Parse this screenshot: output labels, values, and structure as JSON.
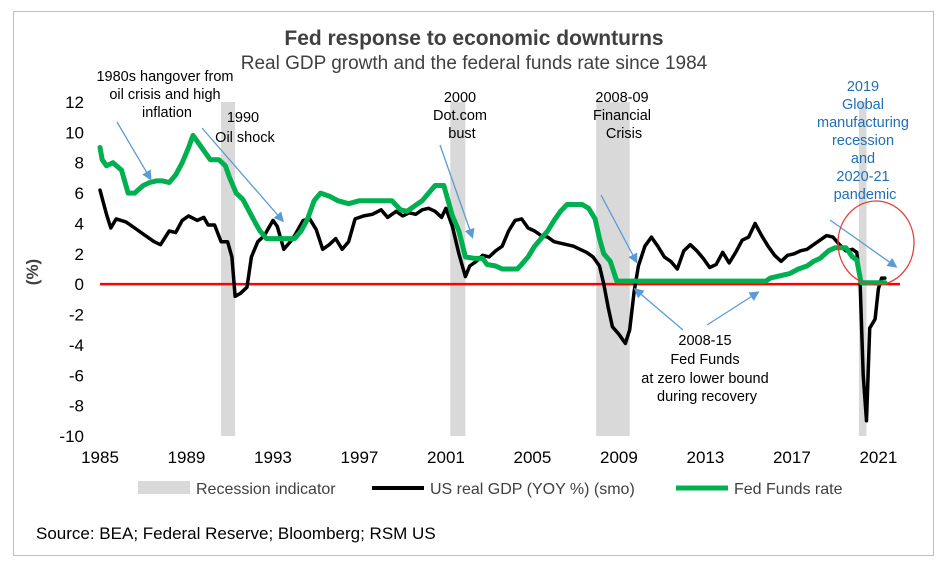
{
  "chart_data": {
    "type": "line",
    "title": "Fed response to economic downturns",
    "subtitle": "Real GDP growth and the federal funds rate since 1984",
    "ylabel": "(%)",
    "xlabel": "",
    "xlim": [
      1985,
      2022
    ],
    "ylim": [
      -10,
      12
    ],
    "x_ticks": [
      1985,
      1989,
      1993,
      1997,
      2001,
      2005,
      2009,
      2013,
      2017,
      2021
    ],
    "y_ticks": [
      -10,
      -8,
      -6,
      -4,
      -2,
      0,
      2,
      4,
      6,
      8,
      10,
      12
    ],
    "zero_line_color": "#ff0000",
    "recessions": {
      "name": "Recession indicator",
      "color": "#d9d9d9",
      "periods": [
        [
          1990.6,
          1991.25
        ],
        [
          2001.2,
          2001.9
        ],
        [
          2007.95,
          2009.5
        ],
        [
          2020.1,
          2020.45
        ]
      ]
    },
    "series": [
      {
        "name": "US real GDP (YOY %) (smo)",
        "color": "#000000",
        "points": [
          [
            1985,
            6.2
          ],
          [
            1985.3,
            4.6
          ],
          [
            1985.5,
            3.7
          ],
          [
            1985.75,
            4.3
          ],
          [
            1986.2,
            4.1
          ],
          [
            1986.7,
            3.6
          ],
          [
            1987,
            3.3
          ],
          [
            1987.5,
            2.8
          ],
          [
            1987.8,
            2.6
          ],
          [
            1988.2,
            3.5
          ],
          [
            1988.5,
            3.4
          ],
          [
            1988.8,
            4.2
          ],
          [
            1989.1,
            4.5
          ],
          [
            1989.5,
            4.2
          ],
          [
            1989.8,
            4.4
          ],
          [
            1990,
            3.9
          ],
          [
            1990.3,
            3.9
          ],
          [
            1990.6,
            2.8
          ],
          [
            1990.9,
            2.8
          ],
          [
            1991.1,
            1.8
          ],
          [
            1991.25,
            -0.8
          ],
          [
            1991.5,
            -0.6
          ],
          [
            1991.8,
            -0.2
          ],
          [
            1992,
            1.8
          ],
          [
            1992.3,
            2.8
          ],
          [
            1992.6,
            3.2
          ],
          [
            1993,
            4.2
          ],
          [
            1993.2,
            3.8
          ],
          [
            1993.5,
            2.3
          ],
          [
            1993.8,
            2.8
          ],
          [
            1994,
            3.2
          ],
          [
            1994.4,
            4.2
          ],
          [
            1994.7,
            4.3
          ],
          [
            1995,
            3.6
          ],
          [
            1995.3,
            2.3
          ],
          [
            1995.6,
            2.6
          ],
          [
            1995.9,
            3.0
          ],
          [
            1996.2,
            2.3
          ],
          [
            1996.5,
            2.8
          ],
          [
            1996.8,
            4.3
          ],
          [
            1997.2,
            4.5
          ],
          [
            1997.6,
            4.6
          ],
          [
            1998,
            4.9
          ],
          [
            1998.3,
            4.4
          ],
          [
            1998.7,
            4.8
          ],
          [
            1999,
            4.5
          ],
          [
            1999.3,
            4.7
          ],
          [
            1999.6,
            4.6
          ],
          [
            1999.9,
            4.9
          ],
          [
            2000.2,
            5.0
          ],
          [
            2000.5,
            4.8
          ],
          [
            2000.8,
            4.4
          ],
          [
            2001.0,
            5.0
          ],
          [
            2001.3,
            3.8
          ],
          [
            2001.6,
            2.0
          ],
          [
            2001.9,
            0.5
          ],
          [
            2002.1,
            1.2
          ],
          [
            2002.4,
            1.5
          ],
          [
            2002.7,
            1.9
          ],
          [
            2003.0,
            1.8
          ],
          [
            2003.3,
            2.2
          ],
          [
            2003.6,
            2.5
          ],
          [
            2003.9,
            3.5
          ],
          [
            2004.2,
            4.2
          ],
          [
            2004.5,
            4.3
          ],
          [
            2004.8,
            3.7
          ],
          [
            2005.1,
            3.5
          ],
          [
            2005.4,
            3.2
          ],
          [
            2005.7,
            3.1
          ],
          [
            2006,
            2.8
          ],
          [
            2006.3,
            2.7
          ],
          [
            2006.6,
            2.6
          ],
          [
            2006.9,
            2.5
          ],
          [
            2007.2,
            2.3
          ],
          [
            2007.5,
            2.1
          ],
          [
            2007.8,
            1.8
          ],
          [
            2008.1,
            1.2
          ],
          [
            2008.3,
            0.0
          ],
          [
            2008.5,
            -1.5
          ],
          [
            2008.7,
            -2.8
          ],
          [
            2009.0,
            -3.3
          ],
          [
            2009.3,
            -3.9
          ],
          [
            2009.5,
            -3.0
          ],
          [
            2009.7,
            -0.5
          ],
          [
            2009.9,
            1.2
          ],
          [
            2010.2,
            2.5
          ],
          [
            2010.5,
            3.1
          ],
          [
            2010.8,
            2.5
          ],
          [
            2011.1,
            1.8
          ],
          [
            2011.4,
            1.5
          ],
          [
            2011.7,
            1.0
          ],
          [
            2012.0,
            2.2
          ],
          [
            2012.3,
            2.6
          ],
          [
            2012.6,
            2.2
          ],
          [
            2012.9,
            1.7
          ],
          [
            2013.2,
            1.1
          ],
          [
            2013.5,
            1.3
          ],
          [
            2013.8,
            2.1
          ],
          [
            2014.1,
            1.4
          ],
          [
            2014.4,
            2.1
          ],
          [
            2014.7,
            2.9
          ],
          [
            2015.0,
            3.1
          ],
          [
            2015.3,
            4.0
          ],
          [
            2015.6,
            3.2
          ],
          [
            2015.9,
            2.5
          ],
          [
            2016.2,
            1.9
          ],
          [
            2016.5,
            1.5
          ],
          [
            2016.8,
            1.9
          ],
          [
            2017.1,
            2.0
          ],
          [
            2017.4,
            2.2
          ],
          [
            2017.7,
            2.3
          ],
          [
            2018.0,
            2.6
          ],
          [
            2018.3,
            2.9
          ],
          [
            2018.6,
            3.2
          ],
          [
            2018.9,
            3.1
          ],
          [
            2019.2,
            2.6
          ],
          [
            2019.5,
            2.2
          ],
          [
            2019.8,
            2.3
          ],
          [
            2020.0,
            2.1
          ],
          [
            2020.15,
            0.3
          ],
          [
            2020.3,
            -6.0
          ],
          [
            2020.45,
            -9.0
          ],
          [
            2020.6,
            -2.9
          ],
          [
            2020.85,
            -2.3
          ],
          [
            2021.0,
            -0.3
          ],
          [
            2021.15,
            0.4
          ],
          [
            2021.3,
            0.4
          ]
        ]
      },
      {
        "name": "Fed Funds rate",
        "color": "#00b050",
        "points": [
          [
            1985,
            9.0
          ],
          [
            1985.1,
            8.2
          ],
          [
            1985.3,
            7.8
          ],
          [
            1985.6,
            8.0
          ],
          [
            1986.0,
            7.5
          ],
          [
            1986.3,
            6.0
          ],
          [
            1986.6,
            6.0
          ],
          [
            1987.0,
            6.5
          ],
          [
            1987.3,
            6.7
          ],
          [
            1987.6,
            6.8
          ],
          [
            1987.9,
            6.8
          ],
          [
            1988.2,
            6.7
          ],
          [
            1988.5,
            7.2
          ],
          [
            1988.8,
            8.0
          ],
          [
            1989.1,
            9.0
          ],
          [
            1989.3,
            9.8
          ],
          [
            1989.6,
            9.2
          ],
          [
            1989.9,
            8.6
          ],
          [
            1990.1,
            8.2
          ],
          [
            1990.5,
            8.2
          ],
          [
            1990.8,
            7.8
          ],
          [
            1991.0,
            7.0
          ],
          [
            1991.3,
            6.0
          ],
          [
            1991.6,
            5.6
          ],
          [
            1991.9,
            4.8
          ],
          [
            1992.2,
            4.0
          ],
          [
            1992.4,
            3.5
          ],
          [
            1992.7,
            3.0
          ],
          [
            1993.0,
            3.0
          ],
          [
            1993.5,
            3.0
          ],
          [
            1994.0,
            3.0
          ],
          [
            1994.3,
            3.5
          ],
          [
            1994.6,
            4.3
          ],
          [
            1994.9,
            5.5
          ],
          [
            1995.2,
            6.0
          ],
          [
            1995.6,
            5.8
          ],
          [
            1996.0,
            5.5
          ],
          [
            1996.5,
            5.3
          ],
          [
            1997.0,
            5.5
          ],
          [
            1997.5,
            5.5
          ],
          [
            1998.0,
            5.5
          ],
          [
            1998.5,
            5.5
          ],
          [
            1998.9,
            4.9
          ],
          [
            1999.2,
            4.8
          ],
          [
            1999.6,
            5.2
          ],
          [
            1999.9,
            5.5
          ],
          [
            2000.2,
            6.0
          ],
          [
            2000.5,
            6.5
          ],
          [
            2000.9,
            6.5
          ],
          [
            2001.1,
            5.5
          ],
          [
            2001.3,
            4.5
          ],
          [
            2001.6,
            3.5
          ],
          [
            2001.9,
            1.8
          ],
          [
            2002.3,
            1.7
          ],
          [
            2002.7,
            1.7
          ],
          [
            2002.9,
            1.3
          ],
          [
            2003.3,
            1.2
          ],
          [
            2003.6,
            1.0
          ],
          [
            2004.3,
            1.0
          ],
          [
            2004.5,
            1.3
          ],
          [
            2004.8,
            1.8
          ],
          [
            2005.1,
            2.5
          ],
          [
            2005.4,
            3.0
          ],
          [
            2005.7,
            3.5
          ],
          [
            2006.0,
            4.2
          ],
          [
            2006.3,
            4.8
          ],
          [
            2006.6,
            5.25
          ],
          [
            2007.3,
            5.25
          ],
          [
            2007.6,
            5.0
          ],
          [
            2007.9,
            4.3
          ],
          [
            2008.1,
            3.0
          ],
          [
            2008.3,
            2.0
          ],
          [
            2008.6,
            1.5
          ],
          [
            2008.9,
            0.2
          ],
          [
            2009.3,
            0.2
          ],
          [
            2015.8,
            0.2
          ],
          [
            2016.0,
            0.4
          ],
          [
            2016.9,
            0.7
          ],
          [
            2017.3,
            1.0
          ],
          [
            2017.7,
            1.2
          ],
          [
            2018.0,
            1.5
          ],
          [
            2018.3,
            1.7
          ],
          [
            2018.7,
            2.2
          ],
          [
            2019.0,
            2.4
          ],
          [
            2019.5,
            2.4
          ],
          [
            2019.8,
            1.8
          ],
          [
            2020.0,
            1.6
          ],
          [
            2020.2,
            0.1
          ],
          [
            2021.3,
            0.1
          ]
        ]
      }
    ],
    "legend": [
      "Recession indicator",
      "US real GDP (YOY %) (smo)",
      "Fed Funds rate"
    ],
    "legend_position": "bottom"
  },
  "annotations": {
    "hangover": [
      "1980s hangover from",
      "oil crisis and high",
      "inflation"
    ],
    "oil_shock": [
      "1990",
      "Oil shock"
    ],
    "dotcom": [
      "2000",
      "Dot.com",
      "bust"
    ],
    "financial": [
      "2008-09",
      "Financial",
      "Crisis"
    ],
    "zero_bound": [
      "2008-15",
      "Fed Funds",
      "at zero lower bound",
      "during recovery"
    ],
    "pandemic": [
      "2019",
      "Global",
      "manufacturing",
      "recession",
      "and",
      "2020-21",
      "pandemic"
    ]
  },
  "source": "Source: BEA; Federal Reserve;  Bloomberg; RSM US",
  "colors": {
    "arrow": "#5b9bd5",
    "circle": "#e53935",
    "annotation_blue": "#1f6fb5"
  }
}
